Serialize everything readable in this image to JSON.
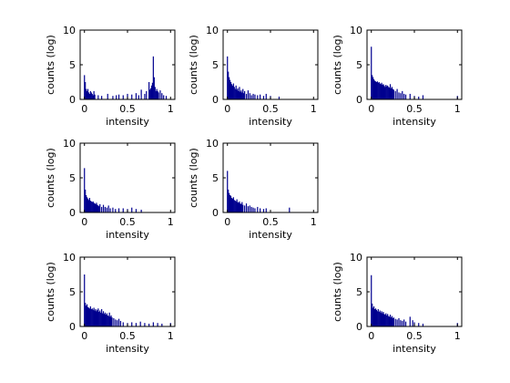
{
  "figure": {
    "background": "#ffffff",
    "axis_color": "#000000"
  },
  "chart_data": [
    {
      "type": "bar",
      "panel": "row-1-col-1",
      "xlabel": "intensity",
      "ylabel": "counts (log)",
      "xlim": [
        -0.05,
        1.05
      ],
      "ylim": [
        0,
        10
      ],
      "xticks": [
        0,
        0.5,
        1
      ],
      "xtick_labels": [
        "0",
        "0.5",
        "1"
      ],
      "yticks": [
        0,
        5,
        10
      ],
      "ytick_labels": [
        "0",
        "5",
        "10"
      ],
      "bar_color": "#00008f",
      "x": [
        0,
        0.01,
        0.02,
        0.03,
        0.04,
        0.05,
        0.06,
        0.07,
        0.08,
        0.09,
        0.1,
        0.11,
        0.12,
        0.16,
        0.2,
        0.27,
        0.33,
        0.37,
        0.4,
        0.45,
        0.5,
        0.55,
        0.6,
        0.63,
        0.66,
        0.7,
        0.72,
        0.75,
        0.76,
        0.77,
        0.78,
        0.79,
        0.8,
        0.81,
        0.82,
        0.83,
        0.84,
        0.85,
        0.86,
        0.88,
        0.9,
        0.92,
        0.95
      ],
      "values": [
        3.5,
        2.5,
        1.5,
        1.2,
        1.5,
        1.0,
        0.8,
        1.2,
        1.0,
        0.8,
        0.6,
        1.2,
        0.7,
        0.6,
        0.5,
        0.8,
        0.5,
        0.6,
        0.7,
        0.6,
        0.8,
        0.7,
        0.9,
        0.6,
        1.4,
        0.8,
        1.2,
        2.5,
        1.4,
        1.6,
        2.0,
        2.4,
        6.2,
        3.2,
        1.8,
        1.2,
        1.5,
        1.2,
        1.0,
        1.3,
        0.9,
        0.6,
        0.5
      ]
    },
    {
      "type": "bar",
      "panel": "row-1-col-2",
      "xlabel": "intensity",
      "ylabel": "counts (log)",
      "xlim": [
        -0.05,
        1.05
      ],
      "ylim": [
        0,
        10
      ],
      "xticks": [
        0,
        0.5,
        1
      ],
      "xtick_labels": [
        "0",
        "0.5",
        "1"
      ],
      "yticks": [
        0,
        5,
        10
      ],
      "ytick_labels": [
        "0",
        "5",
        "10"
      ],
      "bar_color": "#00008f",
      "x": [
        0,
        0.01,
        0.02,
        0.03,
        0.04,
        0.05,
        0.06,
        0.07,
        0.08,
        0.09,
        0.1,
        0.11,
        0.12,
        0.13,
        0.14,
        0.15,
        0.16,
        0.17,
        0.18,
        0.19,
        0.2,
        0.22,
        0.24,
        0.26,
        0.28,
        0.3,
        0.32,
        0.35,
        0.38,
        0.42,
        0.45,
        0.5,
        0.6
      ],
      "values": [
        6.2,
        4.0,
        3.2,
        2.8,
        2.5,
        2.2,
        2.0,
        2.3,
        1.8,
        1.5,
        2.0,
        1.4,
        1.6,
        1.2,
        1.8,
        1.1,
        1.3,
        1.0,
        1.5,
        0.9,
        1.2,
        0.8,
        1.3,
        0.9,
        0.6,
        0.8,
        0.7,
        0.6,
        0.7,
        0.5,
        0.8,
        0.5,
        0.4
      ]
    },
    {
      "type": "bar",
      "panel": "row-1-col-3",
      "xlabel": "intensity",
      "ylabel": "counts (log)",
      "xlim": [
        -0.05,
        1.05
      ],
      "ylim": [
        0,
        10
      ],
      "xticks": [
        0,
        0.5,
        1
      ],
      "xtick_labels": [
        "0",
        "0.5",
        "1"
      ],
      "yticks": [
        0,
        5,
        10
      ],
      "ytick_labels": [
        "0",
        "5",
        "10"
      ],
      "bar_color": "#00008f",
      "x": [
        0,
        0.01,
        0.02,
        0.03,
        0.04,
        0.05,
        0.06,
        0.07,
        0.08,
        0.09,
        0.1,
        0.11,
        0.12,
        0.13,
        0.14,
        0.15,
        0.16,
        0.17,
        0.18,
        0.19,
        0.2,
        0.21,
        0.22,
        0.23,
        0.24,
        0.25,
        0.26,
        0.28,
        0.3,
        0.32,
        0.34,
        0.36,
        0.38,
        0.4,
        0.45,
        0.5,
        0.55,
        0.6,
        1.0
      ],
      "values": [
        7.6,
        3.5,
        3.2,
        2.9,
        2.7,
        2.6,
        2.5,
        2.6,
        2.4,
        2.5,
        2.3,
        2.2,
        2.4,
        2.1,
        2.2,
        2.0,
        1.8,
        2.1,
        1.9,
        2.0,
        1.8,
        1.7,
        2.2,
        1.6,
        1.8,
        1.5,
        1.4,
        1.2,
        1.5,
        1.0,
        0.9,
        1.2,
        0.8,
        0.7,
        0.8,
        0.5,
        0.4,
        0.6,
        0.5
      ]
    },
    {
      "type": "bar",
      "panel": "row-2-col-1",
      "xlabel": "intensity",
      "ylabel": "counts (log)",
      "xlim": [
        -0.05,
        1.05
      ],
      "ylim": [
        0,
        10
      ],
      "xticks": [
        0,
        0.5,
        1
      ],
      "xtick_labels": [
        "0",
        "0.5",
        "1"
      ],
      "yticks": [
        0,
        5,
        10
      ],
      "ytick_labels": [
        "0",
        "5",
        "10"
      ],
      "bar_color": "#00008f",
      "x": [
        0,
        0.01,
        0.02,
        0.03,
        0.04,
        0.05,
        0.06,
        0.07,
        0.08,
        0.09,
        0.1,
        0.11,
        0.12,
        0.13,
        0.14,
        0.15,
        0.16,
        0.17,
        0.18,
        0.2,
        0.22,
        0.24,
        0.26,
        0.28,
        0.3,
        0.33,
        0.36,
        0.4,
        0.45,
        0.5,
        0.55,
        0.6,
        0.66
      ],
      "values": [
        6.4,
        3.3,
        2.5,
        2.2,
        2.0,
        1.8,
        2.1,
        1.7,
        1.6,
        1.5,
        1.6,
        1.4,
        1.3,
        1.2,
        1.4,
        1.1,
        1.0,
        0.9,
        1.2,
        0.8,
        1.1,
        0.8,
        0.7,
        1.0,
        0.6,
        0.7,
        0.5,
        0.6,
        0.6,
        0.5,
        0.7,
        0.5,
        0.4
      ]
    },
    {
      "type": "bar",
      "panel": "row-2-col-2",
      "xlabel": "intensity",
      "ylabel": "counts (log)",
      "xlim": [
        -0.05,
        1.05
      ],
      "ylim": [
        0,
        10
      ],
      "xticks": [
        0,
        0.5,
        1
      ],
      "xtick_labels": [
        "0",
        "0.5",
        "1"
      ],
      "yticks": [
        0,
        5,
        10
      ],
      "ytick_labels": [
        "0",
        "5",
        "10"
      ],
      "bar_color": "#00008f",
      "x": [
        0,
        0.01,
        0.02,
        0.03,
        0.04,
        0.05,
        0.06,
        0.07,
        0.08,
        0.09,
        0.1,
        0.11,
        0.12,
        0.13,
        0.14,
        0.15,
        0.16,
        0.17,
        0.18,
        0.2,
        0.22,
        0.24,
        0.26,
        0.28,
        0.3,
        0.32,
        0.35,
        0.38,
        0.42,
        0.45,
        0.72
      ],
      "values": [
        6.0,
        3.3,
        2.8,
        2.5,
        2.4,
        2.1,
        2.0,
        2.2,
        1.8,
        1.7,
        1.6,
        1.9,
        1.5,
        1.4,
        1.6,
        1.3,
        1.2,
        1.5,
        1.1,
        1.0,
        1.3,
        0.9,
        1.0,
        0.8,
        0.7,
        0.6,
        0.8,
        0.6,
        0.5,
        0.6,
        0.7
      ]
    },
    {
      "type": "bar",
      "panel": "row-3-col-1",
      "xlabel": "intensity",
      "ylabel": "counts (log)",
      "xlim": [
        -0.05,
        1.05
      ],
      "ylim": [
        0,
        10
      ],
      "xticks": [
        0,
        0.5,
        1
      ],
      "xtick_labels": [
        "0",
        "0.5",
        "1"
      ],
      "yticks": [
        0,
        5,
        10
      ],
      "ytick_labels": [
        "0",
        "5",
        "10"
      ],
      "bar_color": "#00008f",
      "x": [
        0,
        0.01,
        0.02,
        0.03,
        0.04,
        0.05,
        0.06,
        0.07,
        0.08,
        0.09,
        0.1,
        0.11,
        0.12,
        0.13,
        0.14,
        0.15,
        0.16,
        0.17,
        0.18,
        0.19,
        0.2,
        0.21,
        0.22,
        0.23,
        0.24,
        0.25,
        0.26,
        0.27,
        0.28,
        0.29,
        0.3,
        0.31,
        0.32,
        0.34,
        0.36,
        0.38,
        0.4,
        0.42,
        0.45,
        0.5,
        0.55,
        0.6,
        0.65,
        0.7,
        0.75,
        0.8,
        0.85,
        0.9,
        1.0
      ],
      "values": [
        7.5,
        3.4,
        3.0,
        3.2,
        2.8,
        2.7,
        2.6,
        2.9,
        2.5,
        2.6,
        2.4,
        2.7,
        2.3,
        2.5,
        2.2,
        2.4,
        2.6,
        2.1,
        2.3,
        2.0,
        2.5,
        1.9,
        2.2,
        1.8,
        2.0,
        1.7,
        1.9,
        1.6,
        1.5,
        2.0,
        1.4,
        1.6,
        1.3,
        1.2,
        1.0,
        0.9,
        1.1,
        0.8,
        0.6,
        0.5,
        0.6,
        0.5,
        0.7,
        0.5,
        0.4,
        0.6,
        0.5,
        0.4,
        0.5
      ]
    },
    {
      "type": "bar",
      "panel": "row-3-col-3",
      "xlabel": "intensity",
      "ylabel": "counts (log)",
      "xlim": [
        -0.05,
        1.05
      ],
      "ylim": [
        0,
        10
      ],
      "xticks": [
        0,
        0.5,
        1
      ],
      "xtick_labels": [
        "0",
        "0.5",
        "1"
      ],
      "yticks": [
        0,
        5,
        10
      ],
      "ytick_labels": [
        "0",
        "5",
        "10"
      ],
      "bar_color": "#00008f",
      "x": [
        0,
        0.01,
        0.02,
        0.03,
        0.04,
        0.05,
        0.06,
        0.07,
        0.08,
        0.09,
        0.1,
        0.11,
        0.12,
        0.13,
        0.14,
        0.15,
        0.16,
        0.17,
        0.18,
        0.19,
        0.2,
        0.21,
        0.22,
        0.23,
        0.24,
        0.25,
        0.26,
        0.28,
        0.3,
        0.32,
        0.34,
        0.36,
        0.38,
        0.4,
        0.45,
        0.48,
        0.5,
        0.55,
        0.6,
        1.0
      ],
      "values": [
        7.4,
        3.3,
        2.7,
        2.9,
        2.5,
        2.6,
        2.4,
        2.2,
        2.5,
        2.1,
        2.3,
        2.0,
        2.2,
        1.9,
        2.1,
        1.8,
        1.7,
        1.9,
        1.6,
        1.8,
        1.5,
        1.4,
        1.7,
        1.3,
        1.5,
        1.2,
        1.3,
        1.1,
        1.0,
        1.2,
        0.9,
        0.8,
        1.0,
        0.7,
        1.4,
        0.9,
        0.6,
        0.5,
        0.4,
        0.5
      ]
    }
  ]
}
